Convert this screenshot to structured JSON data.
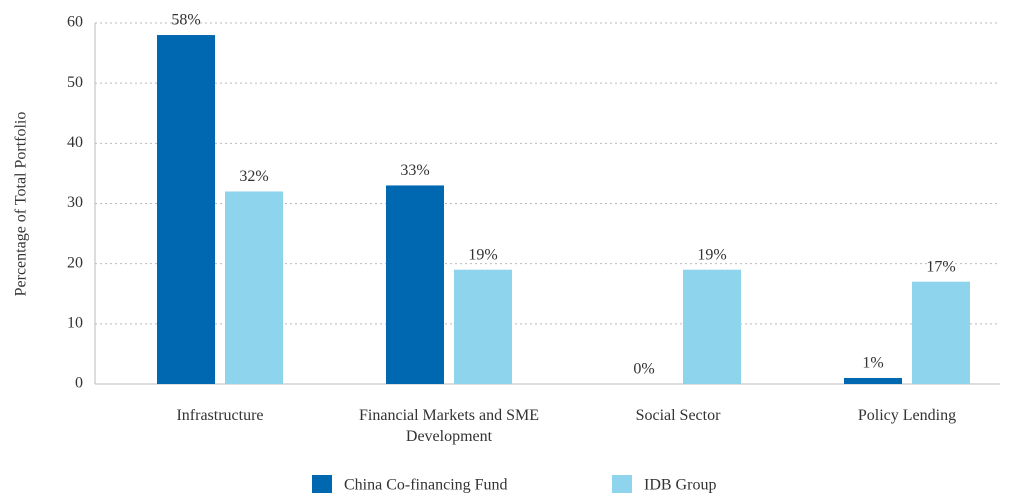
{
  "chart_data": {
    "type": "bar",
    "y_label": "Percentage of Total Portfolio",
    "categories": [
      "Infrastructure",
      "Financial Markets and SME Development",
      "Social Sector",
      "Policy Lending"
    ],
    "series": [
      {
        "name": "China Co-financing Fund",
        "color": "#0067b1",
        "values": [
          58,
          33,
          0,
          1
        ],
        "value_labels": [
          "58%",
          "33%",
          "0%",
          "1%"
        ]
      },
      {
        "name": "IDB Group",
        "color": "#8fd4ed",
        "values": [
          32,
          19,
          19,
          17
        ],
        "value_labels": [
          "32%",
          "19%",
          "19%",
          "17%"
        ]
      }
    ],
    "ylim": [
      0,
      60
    ],
    "yticks": [
      0,
      10,
      20,
      30,
      40,
      50,
      60
    ],
    "grid": true,
    "legend": "bottom"
  }
}
